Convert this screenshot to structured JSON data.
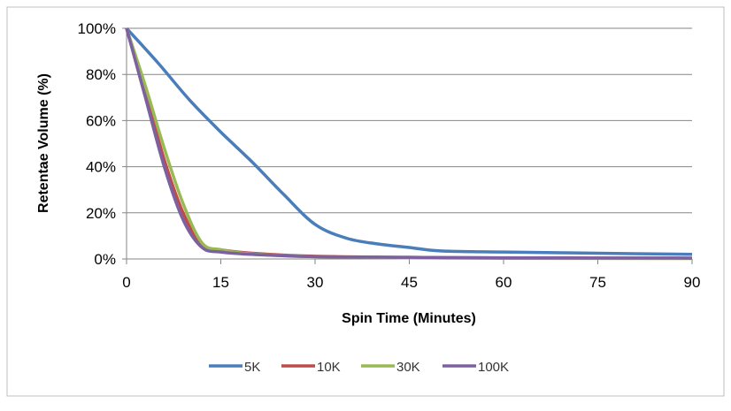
{
  "chart_data": {
    "type": "line",
    "title": "",
    "xlabel": "Spin Time (Minutes)",
    "ylabel": "Retentae Volume (%)",
    "xlim": [
      0,
      90
    ],
    "ylim": [
      0,
      100
    ],
    "xticks": [
      "0",
      "15",
      "30",
      "45",
      "60",
      "75",
      "90"
    ],
    "yticks": [
      "0%",
      "20%",
      "40%",
      "60%",
      "80%",
      "100%"
    ],
    "grid": true,
    "legend_position": "bottom",
    "series": [
      {
        "name": "5K",
        "color": "#4a7ebb",
        "x": [
          0,
          5,
          10,
          15,
          20,
          25,
          30,
          35,
          40,
          45,
          50,
          60,
          75,
          90
        ],
        "y": [
          100,
          85,
          69,
          55,
          42,
          28,
          15,
          9,
          6.5,
          5,
          3.5,
          3,
          2.5,
          2
        ]
      },
      {
        "name": "10K",
        "color": "#be4b48",
        "x": [
          0,
          3,
          6,
          9,
          12,
          15,
          20,
          30,
          45,
          60,
          90
        ],
        "y": [
          100,
          72,
          43,
          20,
          6,
          4,
          2.5,
          1.2,
          0.7,
          0.5,
          0.3
        ]
      },
      {
        "name": "30K",
        "color": "#98b954",
        "x": [
          0,
          3,
          6,
          9,
          12,
          15,
          20,
          30,
          45,
          60,
          90
        ],
        "y": [
          100,
          75,
          48,
          24,
          7,
          4,
          2.2,
          1,
          0.5,
          0.3,
          0.2
        ]
      },
      {
        "name": "100K",
        "color": "#7d60a0",
        "x": [
          0,
          3,
          6,
          9,
          12,
          15,
          20,
          30,
          45,
          60,
          90
        ],
        "y": [
          100,
          70,
          40,
          17,
          5,
          3,
          2,
          1,
          0.7,
          0.5,
          0.4
        ]
      }
    ]
  }
}
